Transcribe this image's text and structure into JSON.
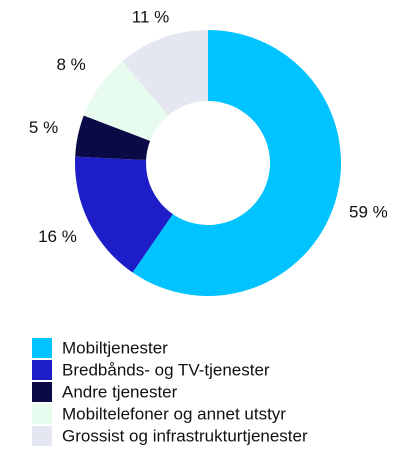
{
  "chart_data": {
    "type": "donut",
    "categories": [
      "Mobiltjenester",
      "Bredbånds- og TV-tjenester",
      "Andre tjenester",
      "Mobiltelefoner og annet utstyr",
      "Grossist og infrastrukturtjenester"
    ],
    "values": [
      59,
      16,
      5,
      8,
      11
    ],
    "value_labels": [
      "59 %",
      "16 %",
      "5 %",
      "8 %",
      "11 %"
    ],
    "colors": [
      "#00c3ff",
      "#1e1ec8",
      "#0a0a46",
      "#e8fbef",
      "#e4e6f0"
    ],
    "legend": "bottom-left"
  }
}
